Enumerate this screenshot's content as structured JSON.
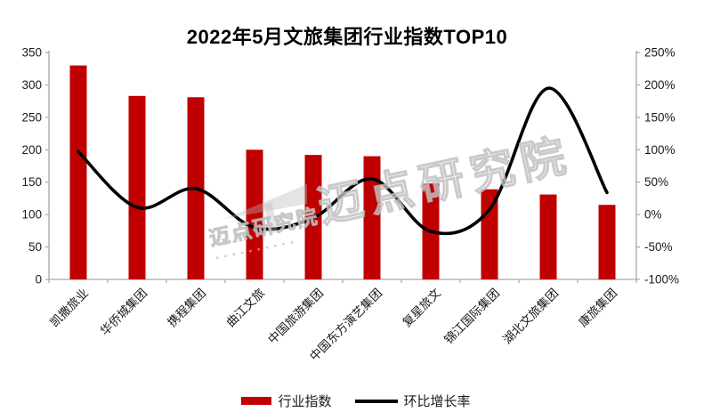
{
  "title": "2022年5月文旅集团行业指数TOP10",
  "legend": {
    "bar_label": "行业指数",
    "line_label": "环比增长率"
  },
  "watermark": {
    "text": "迈点研究院"
  },
  "colors": {
    "bar": "#C00000",
    "line": "#000000",
    "axis": "#a6a6a6",
    "tick_text": "#1a1a1a",
    "watermark": "#b8b8b8"
  },
  "chart_data": {
    "type": "bar",
    "subtype": "bar+line combo",
    "title": "2022年5月文旅集团行业指数TOP10",
    "categories": [
      "凯撒旅业",
      "华侨城集团",
      "携程集团",
      "曲江文旅",
      "中国旅游集团",
      "中国东方演艺集团",
      "复星旅文",
      "锦江国际集团",
      "湖北文旅集团",
      "康旅集团"
    ],
    "series": [
      {
        "name": "行业指数",
        "type": "bar",
        "axis": "left",
        "color": "#C00000",
        "values": [
          330,
          283,
          281,
          200,
          192,
          190,
          148,
          139,
          131,
          115
        ]
      },
      {
        "name": "环比增长率",
        "type": "line",
        "axis": "right",
        "color": "#000000",
        "unit": "%",
        "values": [
          97,
          11,
          40,
          -20,
          -5,
          55,
          -26,
          8,
          195,
          34
        ]
      }
    ],
    "left_axis": {
      "min": 0,
      "max": 350,
      "step": 50,
      "tick_labels": [
        "350",
        "300",
        "250",
        "200",
        "150",
        "100",
        "50",
        "0"
      ]
    },
    "right_axis": {
      "min": -100,
      "max": 250,
      "step": 50,
      "tick_labels": [
        "250%",
        "200%",
        "150%",
        "100%",
        "50%",
        "0%",
        "-50%",
        "-100%"
      ]
    },
    "grid": false,
    "legend_position": "bottom",
    "x_label_rotation_deg": -45,
    "line_smoothing": true
  }
}
